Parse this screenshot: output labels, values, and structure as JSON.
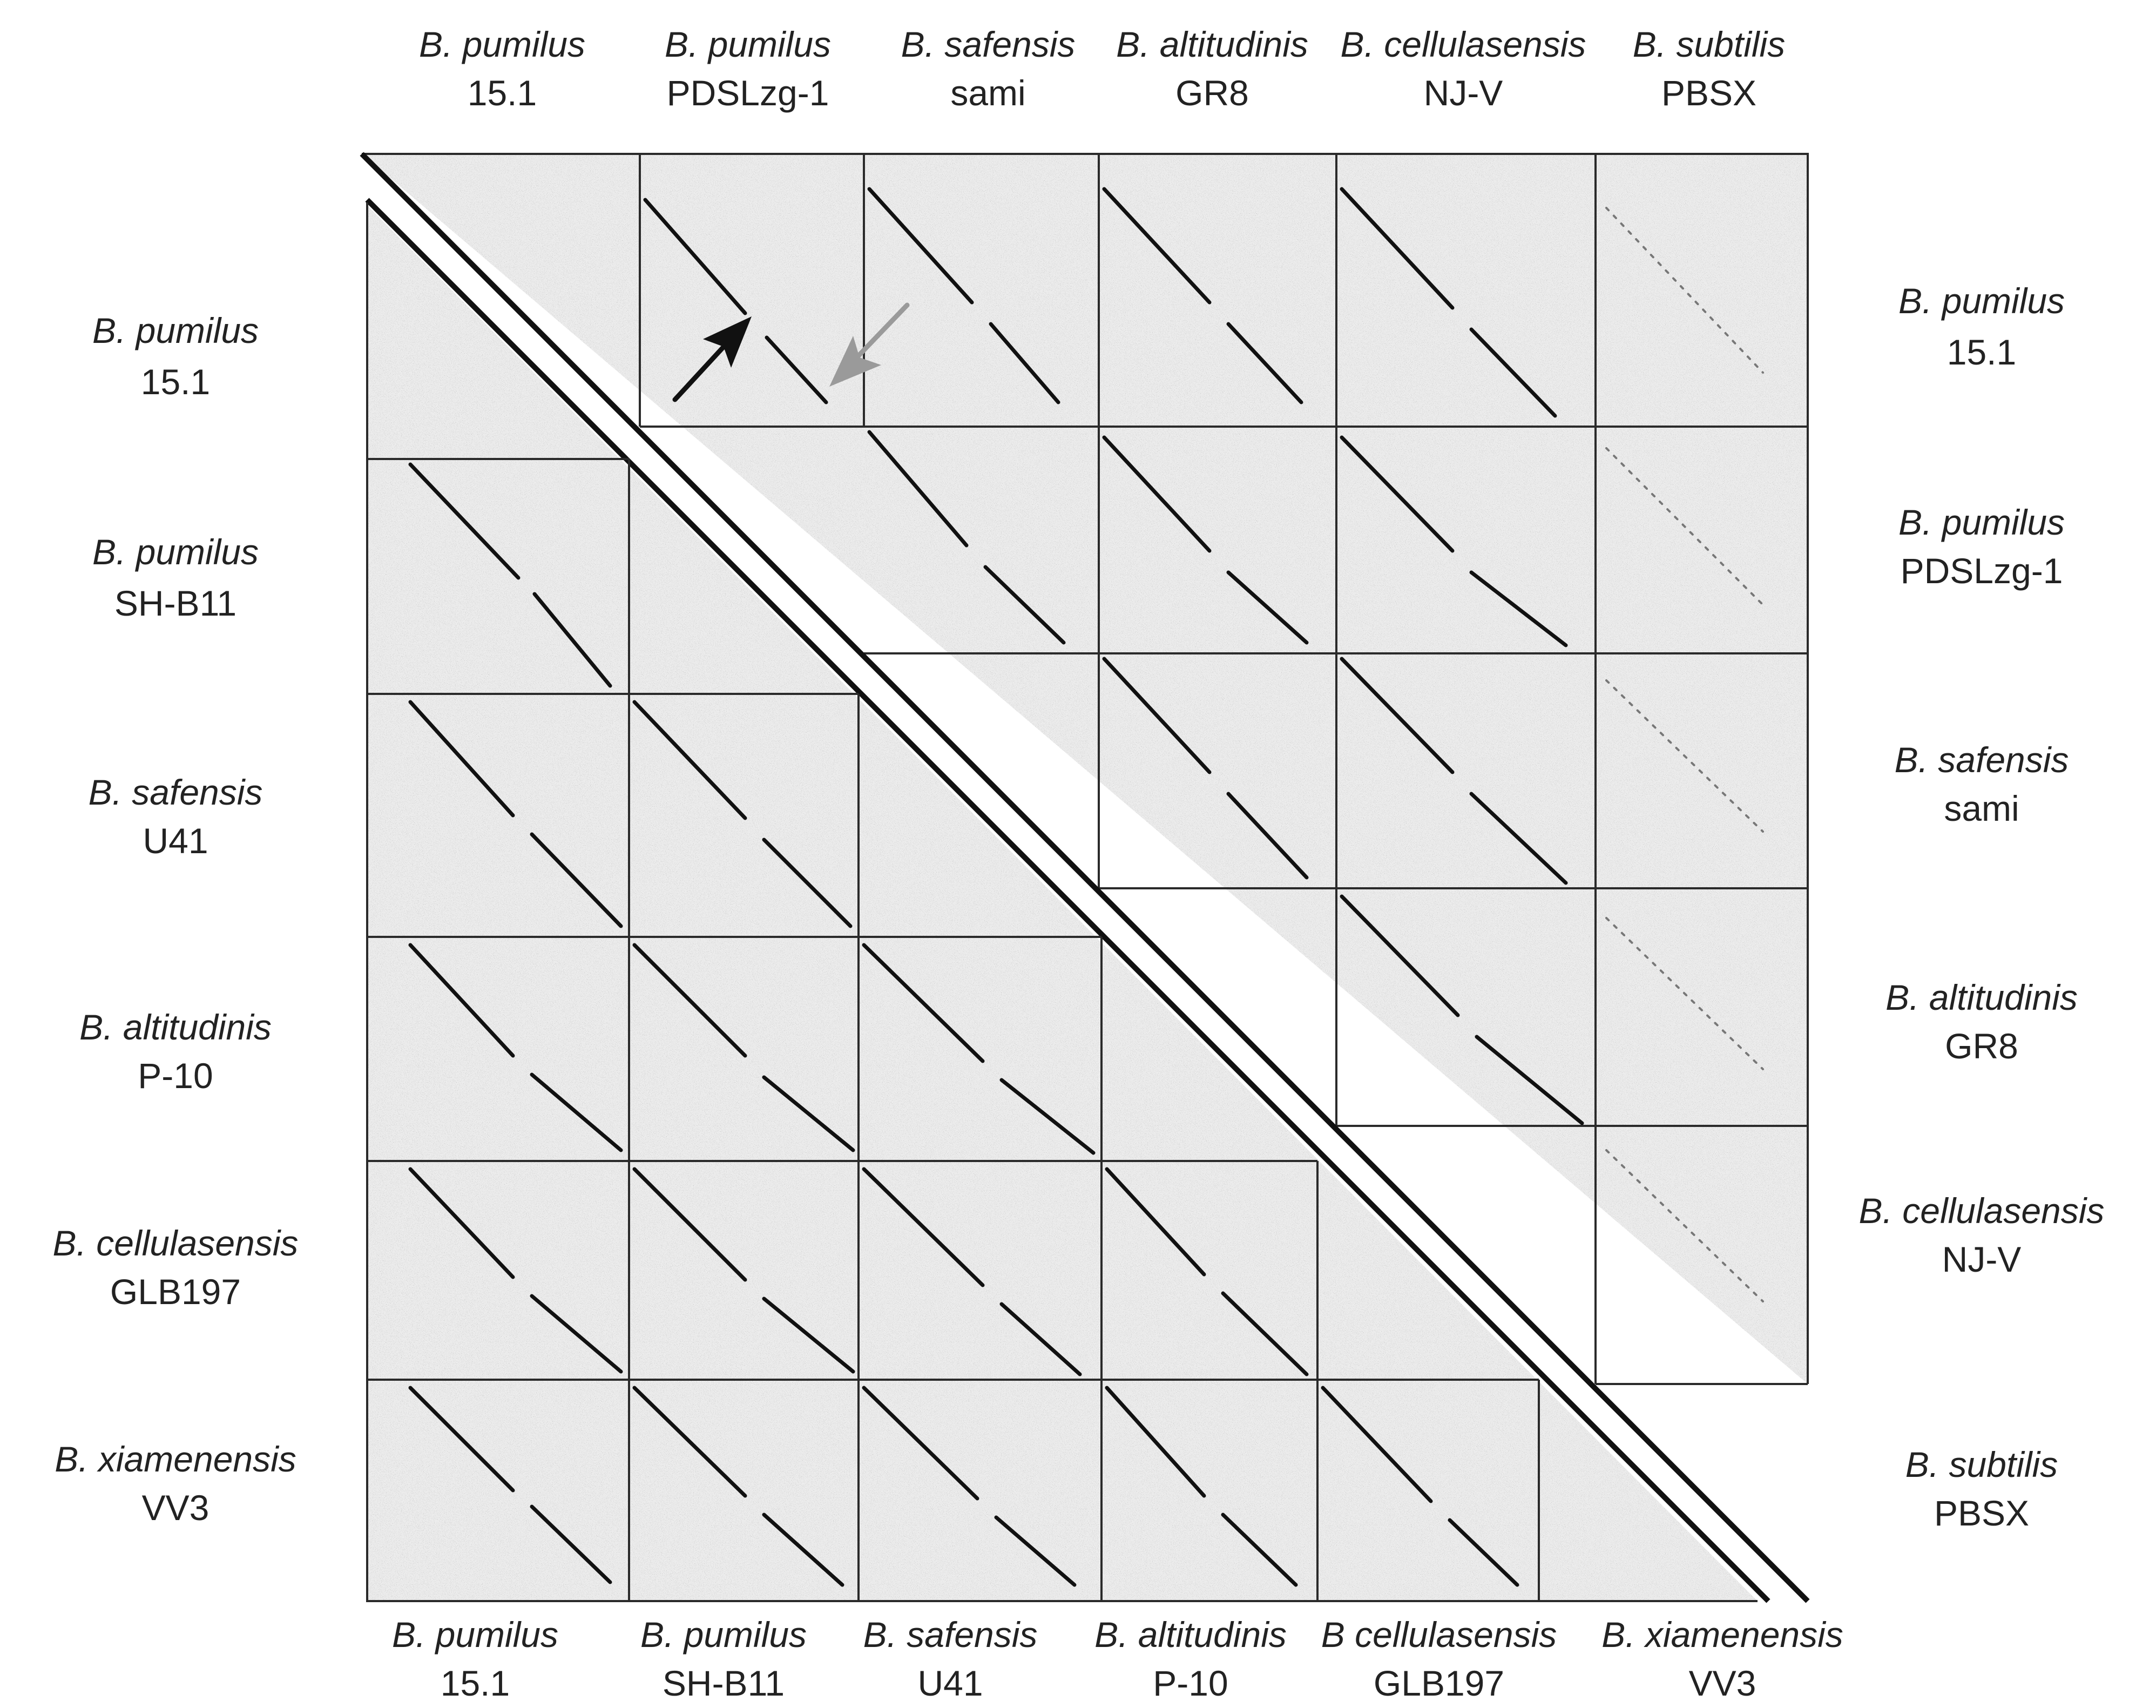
{
  "figure": {
    "top_labels": [
      {
        "species": "B. pumilus",
        "strain": "15.1"
      },
      {
        "species": "B. pumilus",
        "strain": "PDSLzg-1"
      },
      {
        "species": "B. safensis",
        "strain": "sami"
      },
      {
        "species": "B. altitudinis",
        "strain": "GR8"
      },
      {
        "species": "B. cellulasensis",
        "strain": "NJ-V"
      },
      {
        "species": "B. subtilis",
        "strain": "PBSX"
      }
    ],
    "right_labels": [
      {
        "species": "B. pumilus",
        "strain": "15.1"
      },
      {
        "species": "B. pumilus",
        "strain": "PDSLzg-1"
      },
      {
        "species": "B. safensis",
        "strain": "sami"
      },
      {
        "species": "B. altitudinis",
        "strain": "GR8"
      },
      {
        "species": "B. cellulasensis",
        "strain": "NJ-V"
      },
      {
        "species": "B. subtilis",
        "strain": "PBSX"
      }
    ],
    "left_labels": [
      {
        "species": "B. pumilus",
        "strain": "15.1"
      },
      {
        "species": "B. pumilus",
        "strain": "SH-B11"
      },
      {
        "species": "B. safensis",
        "strain": "U41"
      },
      {
        "species": "B. altitudinis",
        "strain": "P-10"
      },
      {
        "species": "B. cellulasensis",
        "strain": "GLB197"
      },
      {
        "species": "B. xiamenensis",
        "strain": "VV3"
      }
    ],
    "bottom_labels": [
      {
        "species": "B. pumilus",
        "strain": "15.1"
      },
      {
        "species": "B. pumilus",
        "strain": "SH-B11"
      },
      {
        "species": "B. safensis",
        "strain": "U41"
      },
      {
        "species": "B. altitudinis",
        "strain": "P-10"
      },
      {
        "species": "B cellulasensis",
        "strain": "GLB197"
      },
      {
        "species": "B. xiamenensis",
        "strain": "VV3"
      }
    ],
    "arrows": [
      {
        "color": "#111111",
        "meaning": ""
      },
      {
        "color": "#9a9a9a",
        "meaning": ""
      }
    ],
    "colors": {
      "dot_plot_background": "#ececec",
      "grid_lines": "#2a2a2a",
      "diagonal_signal": "#111111",
      "weak_signal": "#777777"
    }
  }
}
